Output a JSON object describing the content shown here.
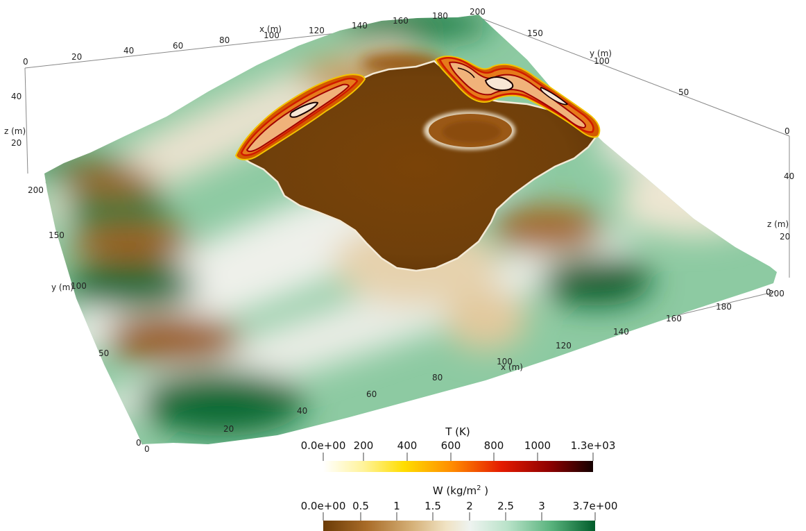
{
  "colorbars": {
    "temperature": {
      "title": "T (K)",
      "ticks": [
        "0.0e+00",
        "200",
        "400",
        "600",
        "800",
        "1000",
        "1.3e+03"
      ],
      "colors": [
        "#ffffff",
        "#fff39a",
        "#ffdd00",
        "#ff8a00",
        "#e41b00",
        "#8e0000",
        "#140000"
      ]
    },
    "water_load": {
      "title_main": "W (kg/m",
      "title_sup": "2",
      "title_end": " )",
      "ticks": [
        "0.0e+00",
        "0.5",
        "1",
        "1.5",
        "2",
        "2.5",
        "3",
        "3.7e+00"
      ],
      "colors": [
        "#6b3b06",
        "#a96c28",
        "#d6b27a",
        "#f0e2c2",
        "#eef3f0",
        "#b8e2c8",
        "#58b27c",
        "#005c2a"
      ]
    }
  },
  "axes": {
    "top_x": {
      "title": "x (m)",
      "ticks": [
        "0",
        "20",
        "40",
        "60",
        "80",
        "100",
        "120",
        "140",
        "160",
        "180",
        "200"
      ]
    },
    "right_y": {
      "title": "y (m)",
      "ticks": [
        "150",
        "100",
        "50",
        "0"
      ]
    },
    "left_z": {
      "title": "z (m)",
      "ticks": [
        "40",
        "20"
      ]
    },
    "right_z": {
      "title": "z (m)",
      "ticks": [
        "40",
        "20",
        "0"
      ]
    },
    "left_y": {
      "title": "y (m)",
      "ticks": [
        "200",
        "150",
        "100",
        "50",
        "0"
      ]
    },
    "bottom_x": {
      "title": "x (m)",
      "ticks": [
        "0",
        "20",
        "40",
        "60",
        "80",
        "100",
        "120",
        "140",
        "160",
        "180",
        "200"
      ]
    }
  }
}
